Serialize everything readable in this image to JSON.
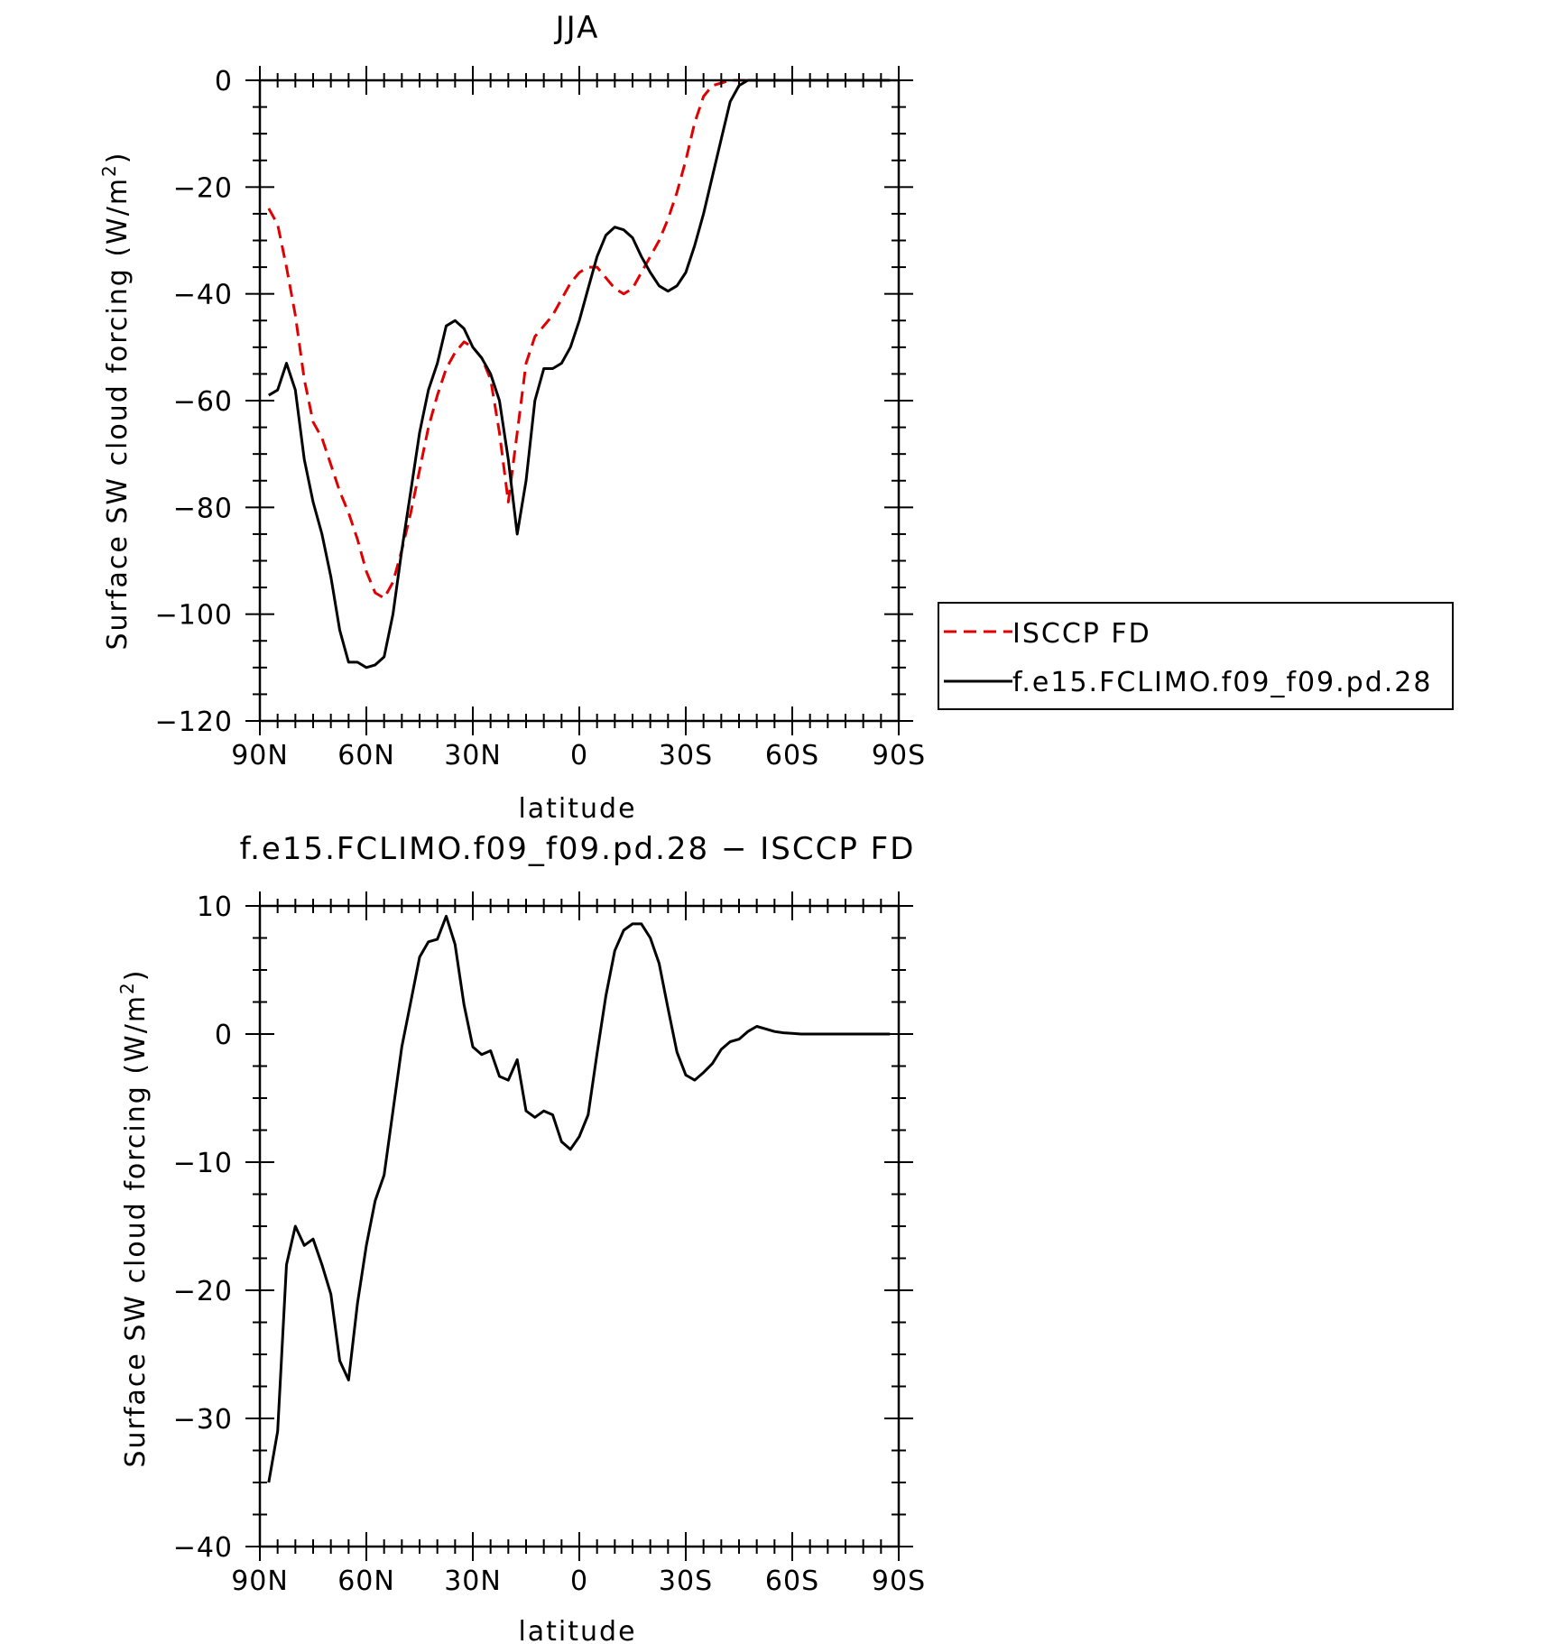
{
  "chart_data": [
    {
      "type": "line",
      "title": "JJA",
      "xlabel": "latitude",
      "ylabel": "Surface SW cloud forcing (W/m",
      "ylabel_sup": "2",
      "ylabel_end": ")",
      "xlim": [
        90,
        -90
      ],
      "ylim": [
        -120,
        0
      ],
      "xtick_values": [
        90,
        60,
        30,
        0,
        -30,
        -60,
        -90
      ],
      "xtick_labels": [
        "90N",
        "60N",
        "30N",
        "0",
        "30S",
        "60S",
        "90S"
      ],
      "ytick_values": [
        0,
        -20,
        -40,
        -60,
        -80,
        -100,
        -120
      ],
      "ytick_labels": [
        "0",
        "−20",
        "−40",
        "−60",
        "−80",
        "−100",
        "−120"
      ],
      "legend": {
        "placement": "right"
      },
      "series": [
        {
          "name": "ISCCP FD",
          "color": "#e00000",
          "dash": "dashed",
          "x": [
            87.5,
            85,
            82.5,
            80,
            77.5,
            75,
            72.5,
            70,
            67.5,
            65,
            62.5,
            60,
            57.5,
            55,
            52.5,
            50,
            47.5,
            45,
            42.5,
            40,
            37.5,
            35,
            32.5,
            30,
            27.5,
            25,
            22.5,
            20,
            17.5,
            15,
            12.5,
            10,
            7.5,
            5,
            2.5,
            0,
            -2.5,
            -5,
            -7.5,
            -10,
            -12.5,
            -15,
            -17.5,
            -20,
            -22.5,
            -25,
            -27.5,
            -30,
            -32.5,
            -35,
            -37.5,
            -40,
            -42.5,
            -45,
            -47.5,
            -50,
            -52.5,
            -55,
            -57.5,
            -60,
            -62.5,
            -65,
            -67.5,
            -70,
            -72.5,
            -75,
            -77.5,
            -80,
            -82.5,
            -85,
            -87.5
          ],
          "y": [
            -24,
            -27,
            -35,
            -44,
            -56,
            -64,
            -67,
            -72,
            -77,
            -81,
            -86,
            -92,
            -96,
            -97,
            -94,
            -88,
            -81,
            -73,
            -65,
            -59,
            -54,
            -51,
            -49,
            -50,
            -52,
            -56,
            -66,
            -79,
            -66,
            -53,
            -48,
            -46,
            -44,
            -41,
            -38,
            -36,
            -35,
            -35,
            -37,
            -39,
            -40,
            -39,
            -36,
            -33,
            -30,
            -26,
            -21,
            -15,
            -8,
            -3,
            -1,
            -0.5,
            0,
            0,
            0,
            0,
            0,
            0,
            0,
            0,
            0,
            0,
            0,
            0,
            0,
            0,
            0,
            0,
            0,
            0,
            0
          ]
        },
        {
          "name": "f.e15.FCLIMO.f09_f09.pd.28",
          "color": "#000000",
          "dash": "solid",
          "x": [
            87.5,
            85,
            82.5,
            80,
            77.5,
            75,
            72.5,
            70,
            67.5,
            65,
            62.5,
            60,
            57.5,
            55,
            52.5,
            50,
            47.5,
            45,
            42.5,
            40,
            37.5,
            35,
            32.5,
            30,
            27.5,
            25,
            22.5,
            20,
            17.5,
            15,
            12.5,
            10,
            7.5,
            5,
            2.5,
            0,
            -2.5,
            -5,
            -7.5,
            -10,
            -12.5,
            -15,
            -17.5,
            -20,
            -22.5,
            -25,
            -27.5,
            -30,
            -32.5,
            -35,
            -37.5,
            -40,
            -42.5,
            -45,
            -47.5,
            -50,
            -52.5,
            -55,
            -57.5,
            -60,
            -62.5,
            -65,
            -67.5,
            -70,
            -72.5,
            -75,
            -77.5,
            -80,
            -82.5,
            -85,
            -87.5
          ],
          "y": [
            -59,
            -58,
            -53,
            -58,
            -71,
            -79,
            -85,
            -93,
            -103,
            -109,
            -109,
            -110,
            -109.5,
            -108,
            -100,
            -88,
            -77,
            -66,
            -58,
            -53,
            -46,
            -45,
            -46.5,
            -50,
            -52,
            -55,
            -60,
            -71,
            -85,
            -75,
            -60,
            -54,
            -54,
            -53,
            -50,
            -45,
            -39,
            -33,
            -29,
            -27.5,
            -28,
            -29.5,
            -33,
            -36,
            -38.5,
            -39.5,
            -38.5,
            -36,
            -31,
            -25,
            -18,
            -11,
            -4,
            -1,
            0,
            0,
            0,
            0,
            0,
            0,
            0,
            0,
            0,
            0,
            0,
            0,
            0,
            0,
            0,
            0,
            0
          ]
        }
      ]
    },
    {
      "type": "line",
      "title": "f.e15.FCLIMO.f09_f09.pd.28 − ISCCP FD",
      "xlabel": "latitude",
      "ylabel": "Surface SW cloud forcing (W/m",
      "ylabel_sup": "2",
      "ylabel_end": ")",
      "xlim": [
        90,
        -90
      ],
      "ylim": [
        -40,
        10
      ],
      "xtick_values": [
        90,
        60,
        30,
        0,
        -30,
        -60,
        -90
      ],
      "xtick_labels": [
        "90N",
        "60N",
        "30N",
        "0",
        "30S",
        "60S",
        "90S"
      ],
      "ytick_values": [
        10,
        0,
        -10,
        -20,
        -30,
        -40
      ],
      "ytick_labels": [
        "10",
        "0",
        "−10",
        "−20",
        "−30",
        "−40"
      ],
      "series": [
        {
          "color": "#000000",
          "dash": "solid",
          "x": [
            87.5,
            85,
            82.5,
            80,
            77.5,
            75,
            72.5,
            70,
            67.5,
            65,
            62.5,
            60,
            57.5,
            55,
            52.5,
            50,
            47.5,
            45,
            42.5,
            40,
            37.5,
            35,
            32.5,
            30,
            27.5,
            25,
            22.5,
            20,
            17.5,
            15,
            12.5,
            10,
            7.5,
            5,
            2.5,
            0,
            -2.5,
            -5,
            -7.5,
            -10,
            -12.5,
            -15,
            -17.5,
            -20,
            -22.5,
            -25,
            -27.5,
            -30,
            -32.5,
            -35,
            -37.5,
            -40,
            -42.5,
            -45,
            -47.5,
            -50,
            -52.5,
            -55,
            -57.5,
            -60,
            -62.5,
            -65,
            -67.5,
            -70,
            -72.5,
            -75,
            -77.5,
            -80,
            -82.5,
            -85,
            -87.5
          ],
          "y": [
            -35,
            -31,
            -18,
            -15,
            -16.5,
            -16,
            -18,
            -20.3,
            -25.5,
            -27,
            -21,
            -16.5,
            -13,
            -11,
            -6,
            -1,
            2.5,
            6,
            7.2,
            7.4,
            9.2,
            7,
            2.3,
            -1,
            -1.6,
            -1.3,
            -3.3,
            -3.6,
            -2,
            -6,
            -6.5,
            -6,
            -6.3,
            -8.4,
            -9,
            -8,
            -6.3,
            -1.5,
            3,
            6.5,
            8.1,
            8.6,
            8.6,
            7.5,
            5.5,
            2,
            -1.4,
            -3.2,
            -3.6,
            -3,
            -2.3,
            -1.2,
            -0.6,
            -0.4,
            0.2,
            0.6,
            0.4,
            0.2,
            0.1,
            0.05,
            0,
            0,
            0,
            0,
            0,
            0,
            0,
            0,
            0,
            0,
            0
          ]
        }
      ]
    }
  ]
}
